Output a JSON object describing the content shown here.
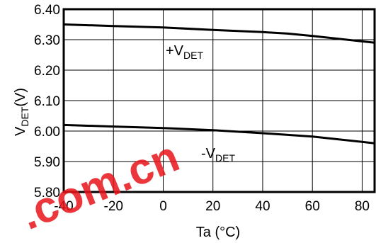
{
  "chart_data": {
    "type": "line",
    "xlabel": "Ta (°C)",
    "ylabel": {
      "main": "V",
      "sub": "DET",
      "tail": "(V)"
    },
    "xlim": [
      -40,
      85
    ],
    "ylim": [
      5.8,
      6.4
    ],
    "xticks": [
      "-40",
      "-20",
      "0",
      "20",
      "40",
      "60",
      "80"
    ],
    "xtick_values": [
      -40,
      -20,
      0,
      20,
      40,
      60,
      80
    ],
    "yticks": [
      "5.80",
      "5.90",
      "6.00",
      "6.10",
      "6.20",
      "6.30",
      "6.40"
    ],
    "ytick_values": [
      5.8,
      5.9,
      6.0,
      6.1,
      6.2,
      6.3,
      6.4
    ],
    "grid": true,
    "series": [
      {
        "name": {
          "main": "+V",
          "sub": "DET"
        },
        "x": [
          -40,
          -20,
          0,
          20,
          40,
          50,
          60,
          85
        ],
        "values": [
          6.35,
          6.345,
          6.34,
          6.332,
          6.325,
          6.32,
          6.312,
          6.29
        ]
      },
      {
        "name": {
          "main": "-V",
          "sub": "DET"
        },
        "x": [
          -40,
          -20,
          0,
          20,
          40,
          60,
          85
        ],
        "values": [
          6.02,
          6.015,
          6.01,
          6.003,
          5.993,
          5.982,
          5.96
        ]
      }
    ],
    "watermark": ".com.cn",
    "colors": {
      "line": "#000000",
      "grid": "#000000",
      "watermark": "#e8141b"
    }
  }
}
